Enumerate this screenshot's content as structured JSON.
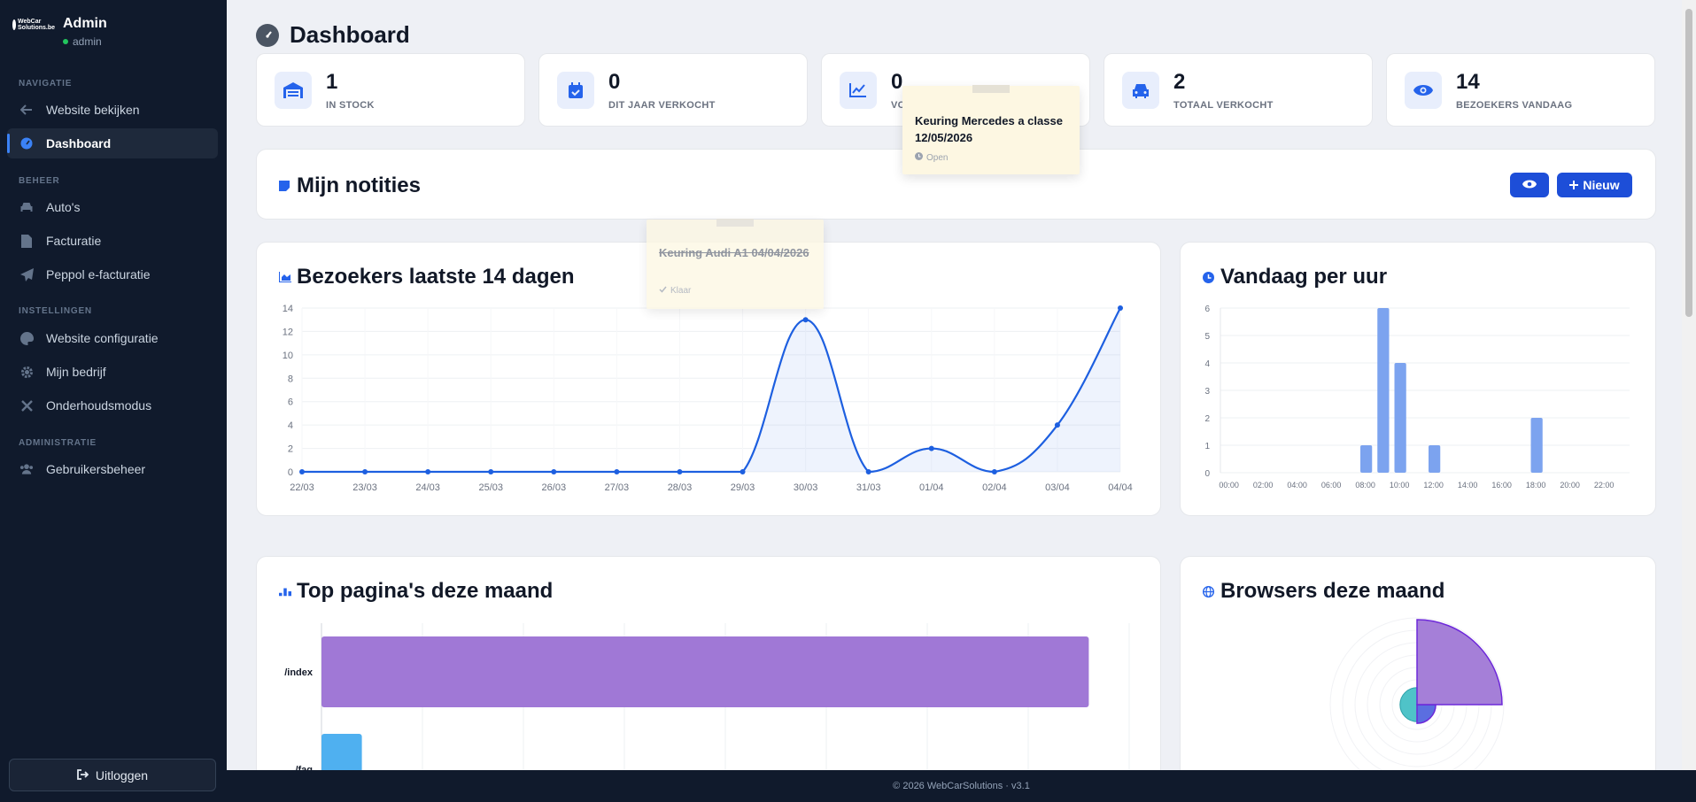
{
  "sidebar": {
    "brand_line1": "WebCar",
    "brand_line2": "Solutions.be",
    "user_name": "Admin",
    "user_role": "admin",
    "sections": {
      "navigatie": "NAVIGATIE",
      "beheer": "BEHEER",
      "instellingen": "INSTELLINGEN",
      "administratie": "ADMINISTRATIE"
    },
    "items": {
      "website_bekijken": "Website bekijken",
      "dashboard": "Dashboard",
      "autos": "Auto's",
      "facturatie": "Facturatie",
      "peppol": "Peppol e-facturatie",
      "website_configuratie": "Website configuratie",
      "mijn_bedrijf": "Mijn bedrijf",
      "onderhoudsmodus": "Onderhoudsmodus",
      "gebruikersbeheer": "Gebruikersbeheer"
    },
    "logout": "Uitloggen"
  },
  "page": {
    "title": "Dashboard"
  },
  "stats": [
    {
      "value": "1",
      "label": "IN STOCK",
      "icon": "warehouse-icon"
    },
    {
      "value": "0",
      "label": "DIT JAAR VERKOCHT",
      "icon": "calendar-check-icon"
    },
    {
      "value": "0",
      "label": "VO",
      "icon": "chart-line-icon"
    },
    {
      "value": "2",
      "label": "TOTAAL VERKOCHT",
      "icon": "car-icon"
    },
    {
      "value": "14",
      "label": "BEZOEKERS VANDAAG",
      "icon": "eye-icon"
    }
  ],
  "notes": {
    "title": "Mijn notities",
    "new_button": "Nieuw",
    "items": [
      {
        "title": "Keuring Mercedes a classe 12/05/2026",
        "status": "Open",
        "done": false
      },
      {
        "title": "Keuring Audi A1 04/04/2026",
        "status": "Klaar",
        "done": true
      }
    ]
  },
  "visitors": {
    "title": "Bezoekers laatste 14 dagen"
  },
  "hourly": {
    "title": "Vandaag per uur"
  },
  "top_pages": {
    "title": "Top pagina's deze maand"
  },
  "browsers": {
    "title": "Browsers deze maand"
  },
  "footer": {
    "text": "© 2026 WebCarSolutions · v3.1"
  },
  "colors": {
    "sidebar_bg": "#101a2c",
    "accent": "#2563eb",
    "line": "#1d5fe0",
    "bar_hourly": "#7ca3ef",
    "bar_top_index": "#a078d6",
    "bar_top_faq": "#4fb0f0",
    "note_bg": "#fdf7e2"
  },
  "chart_data": [
    {
      "type": "line",
      "title": "Bezoekers laatste 14 dagen",
      "categories": [
        "22/03",
        "23/03",
        "24/03",
        "25/03",
        "26/03",
        "27/03",
        "28/03",
        "29/03",
        "30/03",
        "31/03",
        "01/04",
        "02/04",
        "03/04",
        "04/04"
      ],
      "values": [
        0,
        0,
        0,
        0,
        0,
        0,
        0,
        0,
        13,
        0,
        2,
        0,
        4,
        14
      ],
      "yticks": [
        0,
        2,
        4,
        6,
        8,
        10,
        12,
        14
      ],
      "ylim": [
        0,
        14
      ],
      "grid": true
    },
    {
      "type": "bar",
      "title": "Vandaag per uur",
      "categories": [
        "00:00",
        "01:00",
        "02:00",
        "03:00",
        "04:00",
        "05:00",
        "06:00",
        "07:00",
        "08:00",
        "09:00",
        "10:00",
        "11:00",
        "12:00",
        "13:00",
        "14:00",
        "15:00",
        "16:00",
        "17:00",
        "18:00",
        "19:00",
        "20:00",
        "21:00",
        "22:00",
        "23:00"
      ],
      "xtick_labels": [
        "00:00",
        "02:00",
        "04:00",
        "06:00",
        "08:00",
        "10:00",
        "12:00",
        "14:00",
        "16:00",
        "18:00",
        "20:00",
        "22:00"
      ],
      "values": [
        0,
        0,
        0,
        0,
        0,
        0,
        0,
        0,
        1,
        6,
        4,
        0,
        1,
        0,
        0,
        0,
        0,
        0,
        2,
        0,
        0,
        0,
        0,
        0
      ],
      "yticks": [
        0,
        1,
        2,
        3,
        4,
        5,
        6
      ],
      "ylim": [
        0,
        6
      ],
      "grid": true
    },
    {
      "type": "bar",
      "orientation": "horizontal",
      "title": "Top pagina's deze maand",
      "categories": [
        "/index",
        "/faq"
      ],
      "values": [
        95,
        5
      ],
      "grid": true
    },
    {
      "type": "pie",
      "variant": "polar-area",
      "title": "Browsers deze maand",
      "slices": [
        {
          "value": 100,
          "color": "#a57fd8"
        },
        {
          "value": 22,
          "color": "#5b6ee0"
        },
        {
          "value": 20,
          "color": "#4fc3c8"
        }
      ]
    }
  ]
}
